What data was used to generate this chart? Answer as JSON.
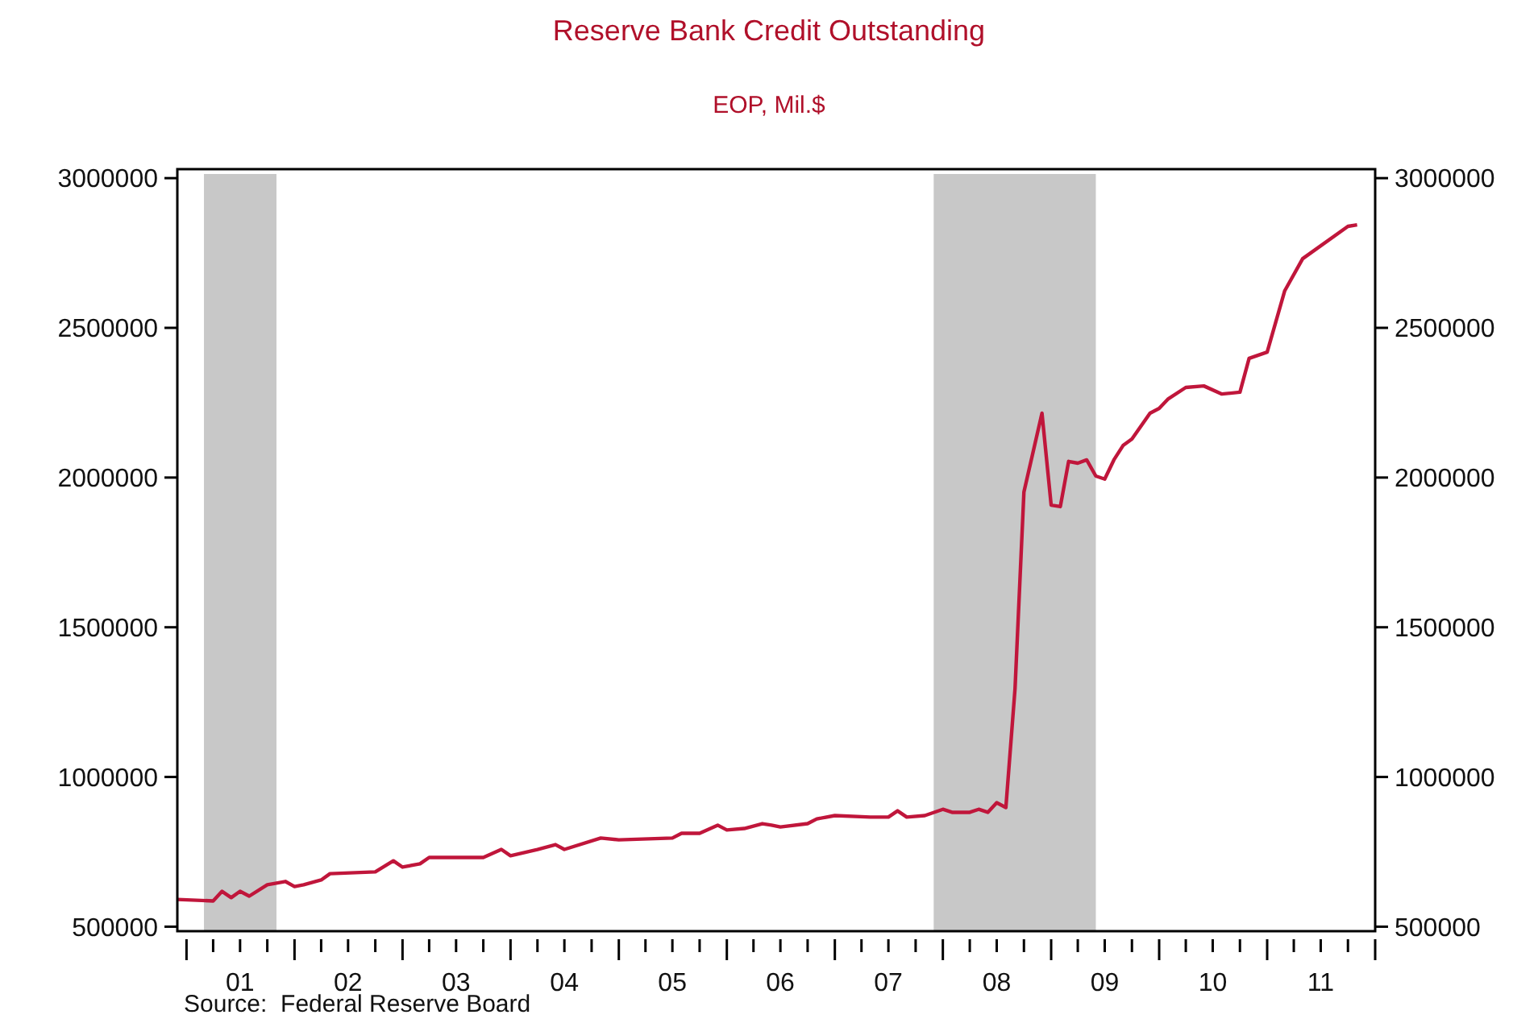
{
  "chart_data": {
    "type": "line",
    "title": "Reserve Bank Credit Outstanding",
    "subtitle": "EOP, Mil.$",
    "annotations": [
      "Source:  Federal Reserve Board"
    ],
    "xlim": [
      "2000-12-01",
      "2012-01-01"
    ],
    "xticks": [
      {
        "value": "2001-01-01",
        "label": null
      },
      {
        "value": "2001-04-01",
        "label": null
      },
      {
        "value": "2001-07-01",
        "label": "01"
      },
      {
        "value": "2001-10-01",
        "label": null
      },
      {
        "value": "2002-01-01",
        "label": null
      },
      {
        "value": "2002-04-01",
        "label": null
      },
      {
        "value": "2002-07-01",
        "label": "02"
      },
      {
        "value": "2002-10-01",
        "label": null
      },
      {
        "value": "2003-01-01",
        "label": null
      },
      {
        "value": "2003-04-01",
        "label": null
      },
      {
        "value": "2003-07-01",
        "label": "03"
      },
      {
        "value": "2003-10-01",
        "label": null
      },
      {
        "value": "2004-01-01",
        "label": null
      },
      {
        "value": "2004-04-01",
        "label": null
      },
      {
        "value": "2004-07-01",
        "label": "04"
      },
      {
        "value": "2004-10-01",
        "label": null
      },
      {
        "value": "2005-01-01",
        "label": null
      },
      {
        "value": "2005-04-01",
        "label": null
      },
      {
        "value": "2005-07-01",
        "label": "05"
      },
      {
        "value": "2005-10-01",
        "label": null
      },
      {
        "value": "2006-01-01",
        "label": null
      },
      {
        "value": "2006-04-01",
        "label": null
      },
      {
        "value": "2006-07-01",
        "label": "06"
      },
      {
        "value": "2006-10-01",
        "label": null
      },
      {
        "value": "2007-01-01",
        "label": null
      },
      {
        "value": "2007-04-01",
        "label": null
      },
      {
        "value": "2007-07-01",
        "label": "07"
      },
      {
        "value": "2007-10-01",
        "label": null
      },
      {
        "value": "2008-01-01",
        "label": null
      },
      {
        "value": "2008-04-01",
        "label": null
      },
      {
        "value": "2008-07-01",
        "label": "08"
      },
      {
        "value": "2008-10-01",
        "label": null
      },
      {
        "value": "2009-01-01",
        "label": null
      },
      {
        "value": "2009-04-01",
        "label": null
      },
      {
        "value": "2009-07-01",
        "label": "09"
      },
      {
        "value": "2009-10-01",
        "label": null
      },
      {
        "value": "2010-01-01",
        "label": null
      },
      {
        "value": "2010-04-01",
        "label": null
      },
      {
        "value": "2010-07-01",
        "label": "10"
      },
      {
        "value": "2010-10-01",
        "label": null
      },
      {
        "value": "2011-01-01",
        "label": null
      },
      {
        "value": "2011-04-01",
        "label": null
      },
      {
        "value": "2011-07-01",
        "label": "11"
      },
      {
        "value": "2011-10-01",
        "label": null
      },
      {
        "value": "2012-01-01",
        "label": null
      }
    ],
    "ylim": [
      485000,
      3030000
    ],
    "yticks": [
      500000,
      1000000,
      1500000,
      2000000,
      2500000,
      3000000
    ],
    "y2lim": [
      485000,
      3030000
    ],
    "y2ticks": [
      500000,
      1000000,
      1500000,
      2000000,
      2500000,
      3000000
    ],
    "grid": false,
    "marker": "none",
    "line_style": "solid",
    "bands": [
      {
        "axis": "x",
        "from": "2001-03-01",
        "to": "2001-11-01",
        "color": "#c8c8c8"
      },
      {
        "axis": "x",
        "from": "2007-12-01",
        "to": "2009-06-01",
        "color": "#c8c8c8"
      }
    ],
    "x": [
      "2000-12",
      "2001-04",
      "2001-05",
      "2001-06",
      "2001-07",
      "2001-08",
      "2001-10",
      "2001-12",
      "2002-01",
      "2002-02",
      "2002-04",
      "2002-05",
      "2002-10",
      "2002-12",
      "2003-01",
      "2003-03",
      "2003-04",
      "2003-10",
      "2003-12",
      "2004-01",
      "2004-04",
      "2004-06",
      "2004-07",
      "2004-11",
      "2005-01",
      "2005-07",
      "2005-08",
      "2005-10",
      "2005-12",
      "2006-01",
      "2006-03",
      "2006-05",
      "2006-06",
      "2006-07",
      "2006-10",
      "2006-11",
      "2007-01",
      "2007-05",
      "2007-07",
      "2007-08",
      "2007-09",
      "2007-11",
      "2008-01",
      "2008-02",
      "2008-04",
      "2008-05",
      "2008-06",
      "2008-07",
      "2008-08",
      "2008-09",
      "2008-10",
      "2008-12",
      "2009-01",
      "2009-02",
      "2009-03",
      "2009-04",
      "2009-05",
      "2009-06",
      "2009-07",
      "2009-08",
      "2009-09",
      "2009-10",
      "2009-12",
      "2010-01",
      "2010-02",
      "2010-04",
      "2010-06",
      "2010-08",
      "2010-10",
      "2010-11",
      "2011-01",
      "2011-03",
      "2011-05",
      "2011-10",
      "2011-11"
    ],
    "series": [
      {
        "color": "#c0163b",
        "values": [
          591000,
          586000,
          618000,
          597000,
          618000,
          602000,
          640000,
          651000,
          634000,
          640000,
          656000,
          677000,
          683000,
          720000,
          699000,
          710000,
          731000,
          731000,
          758000,
          737000,
          758000,
          774000,
          758000,
          796000,
          790000,
          796000,
          812000,
          812000,
          839000,
          823000,
          828000,
          844000,
          839000,
          833000,
          844000,
          860000,
          871000,
          866000,
          866000,
          887000,
          866000,
          871000,
          892000,
          882000,
          882000,
          892000,
          882000,
          914000,
          898000,
          1296000,
          1952000,
          2215000,
          1908000,
          1903000,
          2054000,
          2048000,
          2059000,
          2005000,
          1995000,
          2059000,
          2107000,
          2129000,
          2215000,
          2231000,
          2263000,
          2301000,
          2306000,
          2279000,
          2285000,
          2398000,
          2419000,
          2623000,
          2731000,
          2839000,
          2844000
        ]
      }
    ]
  }
}
